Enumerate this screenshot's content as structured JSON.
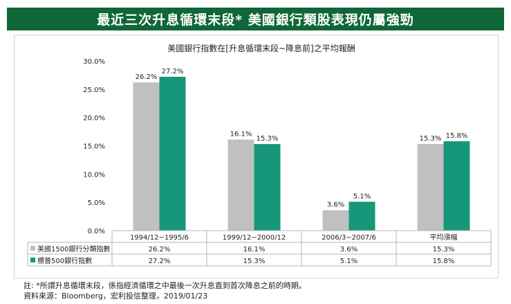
{
  "banner": {
    "title": "最近三次升息循環末段* 美國銀行類股表現仍屬強勁"
  },
  "chart_data": {
    "type": "bar",
    "title": "美國銀行指數在[升息循環末段~降息前]之平均報酬",
    "categories": [
      "1994/12~1995/6",
      "1999/12~2000/12",
      "2006/3~2007/6",
      "平均漲幅"
    ],
    "series": [
      {
        "name": "美國1500銀行分類指數",
        "values": [
          26.2,
          16.1,
          3.6,
          15.3
        ],
        "labels": [
          "26.2%",
          "16.1%",
          "3.6%",
          "15.3%"
        ],
        "color": "#c0c0c0"
      },
      {
        "name": "標普500銀行指數",
        "values": [
          27.2,
          15.3,
          5.1,
          15.8
        ],
        "labels": [
          "27.2%",
          "15.3%",
          "5.1%",
          "15.8%"
        ],
        "color": "#17977a"
      }
    ],
    "ylim": [
      0,
      30
    ],
    "yticks": [
      "0.0%",
      "5.0%",
      "10.0%",
      "15.0%",
      "20.0%",
      "25.0%",
      "30.0%"
    ],
    "xlabel": "",
    "ylabel": "",
    "grid": false,
    "legend": "data-table"
  },
  "notes": {
    "note": "註: *所謂升息循環末段，係指經濟循環之中最後一次升息直到首次降息之前的時期。",
    "source": "資料來源：Bloomberg，宏利投信整理，2019/01/23"
  }
}
